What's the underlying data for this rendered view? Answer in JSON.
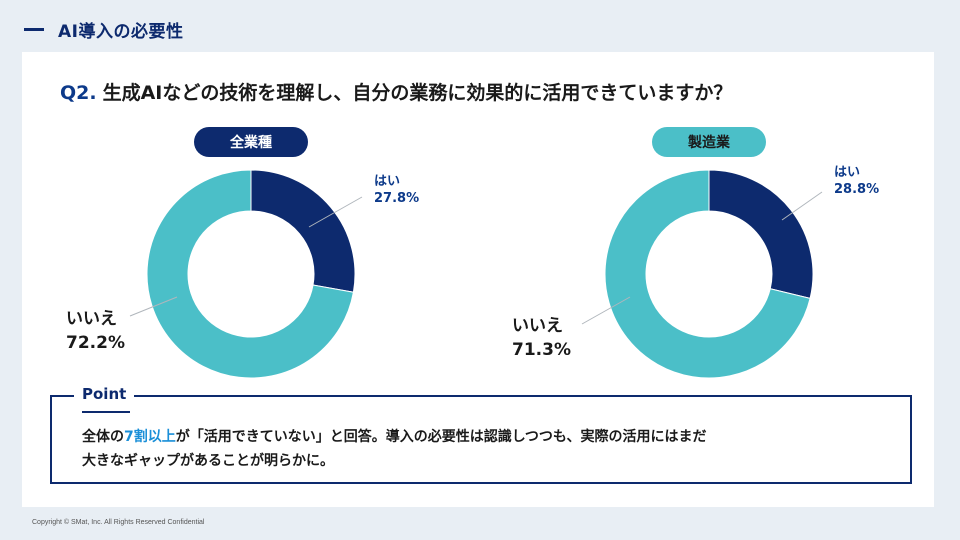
{
  "header": {
    "title": "AI導入の必要性"
  },
  "question": {
    "number": "Q2.",
    "text": "生成AIなどの技術を理解し、自分の業務に効果的に活用できていますか？"
  },
  "colors": {
    "navy": "#0d2a6e",
    "teal": "#4bbfc8",
    "highlight": "#1a8fd8"
  },
  "chart_data": [
    {
      "type": "pie",
      "title": "全業種",
      "categories": [
        "はい",
        "いいえ"
      ],
      "values": [
        27.8,
        72.2
      ],
      "value_labels": [
        "27.8%",
        "72.2%"
      ],
      "colors": [
        "#0d2a6e",
        "#4bbfc8"
      ]
    },
    {
      "type": "pie",
      "title": "製造業",
      "categories": [
        "はい",
        "いいえ"
      ],
      "values": [
        28.8,
        71.3
      ],
      "value_labels": [
        "28.8%",
        "71.3%"
      ],
      "colors": [
        "#0d2a6e",
        "#4bbfc8"
      ]
    }
  ],
  "point": {
    "title": "Point",
    "text_before": "全体の",
    "text_highlight": "7割以上",
    "text_after_line1": "が「活用できていない」と回答。導入の必要性は認識しつつも、実際の活用にはまだ",
    "text_line2": "大きなギャップがあることが明らかに。"
  },
  "footer": {
    "copyright": "Copyright © SMat, Inc. All Rights Reserved Confidential"
  }
}
